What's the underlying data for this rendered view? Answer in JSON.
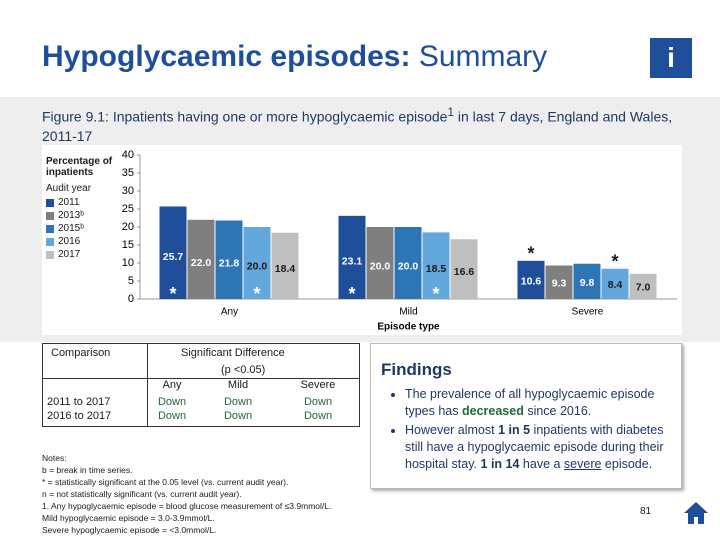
{
  "header": {
    "title_bold": "Hypoglycaemic episodes:",
    "title_regular": "Summary",
    "info_icon": "i"
  },
  "caption": {
    "before": "Figure 9.1: Inpatients having one or more hypoglycaemic episode",
    "sup": "1",
    "after": " in last 7 days, England and Wales, 2011-17"
  },
  "chart_data": {
    "type": "bar",
    "y_label": "Percentage of inpatients",
    "legend_title": "Audit year",
    "x_label": "Episode type",
    "categories": [
      "Any",
      "Mild",
      "Severe"
    ],
    "ylim": [
      0,
      40
    ],
    "yticks": [
      0,
      5,
      10,
      15,
      20,
      25,
      30,
      35,
      40
    ],
    "series": [
      {
        "name": "2011",
        "color": "#1f4e9a",
        "label_color": "#ffffff",
        "values": [
          25.7,
          23.1,
          10.6
        ],
        "value_labels": [
          "25.7",
          "23.1",
          "10.6"
        ]
      },
      {
        "name": "2013ᵇ",
        "color": "#7f7f7f",
        "label_color": "#ffffff",
        "values": [
          22.0,
          20.0,
          9.3
        ],
        "value_labels": [
          "22.0",
          "20.0",
          "9.3"
        ]
      },
      {
        "name": "2015ᵇ",
        "color": "#2e75b6",
        "label_color": "#ffffff",
        "values": [
          21.8,
          20.0,
          9.8
        ],
        "value_labels": [
          "21.8",
          "20.0",
          "9.8"
        ]
      },
      {
        "name": "2016",
        "color": "#62a8dc",
        "label_color": "#1a1a1a",
        "values": [
          20.0,
          18.5,
          8.4
        ],
        "value_labels": [
          "20.0",
          "18.5",
          "8.4"
        ]
      },
      {
        "name": "2017",
        "color": "#bfbfbf",
        "label_color": "#1a1a1a",
        "values": [
          18.4,
          16.6,
          7.0
        ],
        "value_labels": [
          "18.4",
          "16.6",
          "7.0"
        ]
      }
    ],
    "annotations": [
      {
        "text": "*",
        "series": 0,
        "category": 0,
        "position": "inside",
        "color": "#ffffff"
      },
      {
        "text": "*",
        "series": 3,
        "category": 0,
        "position": "inside",
        "color": "#ffffff"
      },
      {
        "text": "*",
        "series": 0,
        "category": 1,
        "position": "inside",
        "color": "#ffffff"
      },
      {
        "text": "*",
        "series": 3,
        "category": 1,
        "position": "inside",
        "color": "#ffffff"
      },
      {
        "text": "*",
        "series": 0,
        "category": 2,
        "position": "above",
        "color": "#1a1a1a"
      },
      {
        "text": "*",
        "series": 3,
        "category": 2,
        "position": "above",
        "color": "#1a1a1a"
      }
    ]
  },
  "table": {
    "header": [
      "Comparison",
      "Significant Difference",
      "(p <0.05)"
    ],
    "subheader": [
      "Any",
      "Mild",
      "Severe"
    ],
    "rows": [
      [
        "2011 to 2017",
        "Down",
        "Down",
        "Down"
      ],
      [
        "2016 to 2017",
        "Down",
        "Down",
        "Down"
      ]
    ]
  },
  "notes": [
    "Notes:",
    "b = break in time series.",
    "* = statistically significant at the 0.05 level (vs. current audit year).",
    "n = not statistically significant (vs. current audit year).",
    "1. Any hypoglycaemic episode = blood glucose measurement of ≤3.9mmol/L.",
    "Mild hypoglycaemic episode = 3.0-3.9mmol/L.",
    "Severe hypoglycaemic episode = <3.0mmol/L."
  ],
  "findings": {
    "title": "Findings",
    "bullets": [
      [
        "The prevalence of all hypoglycaemic episode types has ",
        "decreased",
        " since 2016."
      ],
      [
        "However almost ",
        "1 in 5",
        " inpatients with diabetes still have a hypoglycaemic episode during their hospital stay. ",
        "1 in 14",
        " have a ",
        "severe",
        " episode."
      ]
    ]
  },
  "page_number": "81"
}
